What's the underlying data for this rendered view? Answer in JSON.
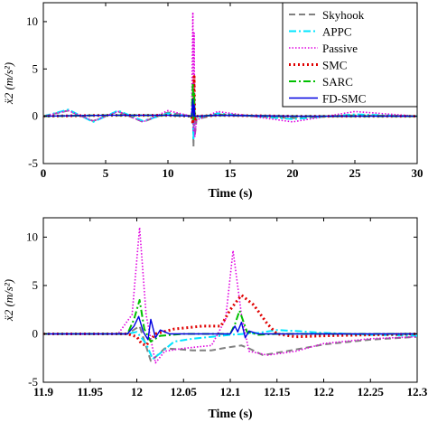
{
  "chart_data": [
    {
      "type": "line",
      "xlabel": "Time (s)",
      "ylabel": "ẍ2 (m/s²)",
      "xlim": [
        0,
        30
      ],
      "ylim": [
        -5,
        12
      ],
      "xticks": [
        "0",
        "5",
        "10",
        "15",
        "20",
        "25",
        "30"
      ],
      "yticks": [
        "-5",
        "0",
        "5",
        "10"
      ],
      "grid": false,
      "legend_position": "top-right",
      "series": [
        {
          "name": "Skyhook",
          "color": "#808080",
          "dash": "dashed",
          "x": [
            0,
            2,
            4,
            6,
            8,
            10,
            11.9,
            12.0,
            12.05,
            12.1,
            12.15,
            12.3,
            14,
            20,
            25,
            30
          ],
          "values": [
            0,
            0.6,
            -0.5,
            0.5,
            -0.6,
            0.4,
            0,
            0.6,
            -3.2,
            2.0,
            -2.1,
            -0.3,
            0.2,
            -0.2,
            0.1,
            0
          ]
        },
        {
          "name": "APPC",
          "color": "#00e5ff",
          "dash": "dashdot",
          "x": [
            0,
            2,
            4,
            6,
            8,
            10,
            11.9,
            12.0,
            12.05,
            12.1,
            12.15,
            12.3,
            14,
            20,
            25,
            30
          ],
          "values": [
            0,
            0.7,
            -0.6,
            0.6,
            -0.5,
            0.3,
            0,
            1.0,
            -2.5,
            1.5,
            -0.3,
            -0.2,
            0.3,
            -0.3,
            0.2,
            0
          ]
        },
        {
          "name": "Passive",
          "color": "#e000e0",
          "dash": "dotted",
          "x": [
            0,
            2,
            4,
            6,
            8,
            10,
            11.9,
            12.0,
            12.05,
            12.1,
            12.15,
            12.3,
            14,
            20,
            25,
            30
          ],
          "values": [
            0,
            0.6,
            -0.5,
            0.5,
            -0.6,
            0.6,
            0,
            11.0,
            -1.5,
            8.8,
            -2.2,
            -0.4,
            0.5,
            -0.6,
            0.5,
            0
          ]
        },
        {
          "name": "SMC",
          "color": "#e00000",
          "dash": "dotted-thick",
          "x": [
            0,
            5,
            10,
            11.9,
            12.0,
            12.05,
            12.1,
            12.15,
            12.3,
            14,
            20,
            30
          ],
          "values": [
            0,
            0.1,
            0.1,
            0,
            -0.8,
            0.8,
            4.2,
            -0.5,
            0,
            0.1,
            0,
            0
          ]
        },
        {
          "name": "SARC",
          "color": "#00c000",
          "dash": "dashdot",
          "x": [
            0,
            5,
            10,
            11.9,
            12.0,
            12.05,
            12.1,
            12.15,
            12.3,
            14,
            20,
            30
          ],
          "values": [
            0,
            0.1,
            0.1,
            0,
            3.5,
            -0.3,
            2.4,
            0,
            0,
            0.1,
            0,
            0
          ]
        },
        {
          "name": "FD-SMC",
          "color": "#0000e0",
          "dash": "solid",
          "x": [
            0,
            5,
            10,
            11.9,
            12.0,
            12.05,
            12.1,
            12.15,
            12.3,
            14,
            20,
            30
          ],
          "values": [
            0,
            0.1,
            0.1,
            0,
            1.8,
            0,
            1.2,
            0,
            0,
            0.1,
            0,
            0
          ]
        }
      ]
    },
    {
      "type": "line",
      "xlabel": "Time (s)",
      "ylabel": "ẍ2 (m/s²)",
      "xlim": [
        11.9,
        12.3
      ],
      "ylim": [
        -5,
        12
      ],
      "xticks": [
        "11.9",
        "11.95",
        "12",
        "12.05",
        "12.1",
        "12.15",
        "12.2",
        "12.25",
        "12.3"
      ],
      "yticks": [
        "-5",
        "0",
        "5",
        "10"
      ],
      "grid": false,
      "series": [
        {
          "name": "Skyhook",
          "color": "#808080",
          "dash": "dashed",
          "x": [
            11.9,
            11.99,
            12.003,
            12.015,
            12.02,
            12.03,
            12.045,
            12.06,
            12.08,
            12.097,
            12.112,
            12.12,
            12.135,
            12.16,
            12.2,
            12.25,
            12.3
          ],
          "values": [
            0,
            0,
            0.8,
            -2.8,
            -2.4,
            -1.5,
            -1.6,
            -1.7,
            -1.7,
            -1.4,
            -1.2,
            -1.5,
            -2.2,
            -1.8,
            -1.1,
            -0.6,
            -0.3
          ]
        },
        {
          "name": "APPC",
          "color": "#00e5ff",
          "dash": "dashdot",
          "x": [
            11.9,
            11.99,
            12.0,
            12.01,
            12.017,
            12.025,
            12.04,
            12.06,
            12.08,
            12.1,
            12.13,
            12.15,
            12.17,
            12.2,
            12.25,
            12.3
          ],
          "values": [
            0,
            0,
            0.2,
            -1.0,
            -2.6,
            -2.0,
            -0.8,
            -0.5,
            -0.3,
            -0.1,
            0.1,
            0.4,
            0.3,
            0.1,
            -0.1,
            -0.2
          ]
        },
        {
          "name": "Passive",
          "color": "#e000e0",
          "dash": "dotted",
          "x": [
            11.9,
            11.98,
            11.995,
            12.003,
            12.01,
            12.02,
            12.03,
            12.05,
            12.08,
            12.095,
            12.103,
            12.112,
            12.12,
            12.14,
            12.17,
            12.2,
            12.25,
            12.3
          ],
          "values": [
            0,
            0,
            2.0,
            11.0,
            2.0,
            -3.0,
            -1.8,
            -1.5,
            -1.2,
            1.5,
            8.6,
            2.0,
            -1.8,
            -2.2,
            -1.8,
            -1.0,
            -0.5,
            -0.3
          ]
        },
        {
          "name": "SMC",
          "color": "#e00000",
          "dash": "dotted-thick",
          "x": [
            11.9,
            11.99,
            12.0,
            12.005,
            12.01,
            12.02,
            12.04,
            12.07,
            12.09,
            12.1,
            12.112,
            12.125,
            12.14,
            12.15,
            12.17,
            12.2,
            12.3
          ],
          "values": [
            0,
            0,
            -0.3,
            -1.0,
            -1.2,
            0,
            0.5,
            0.8,
            0.8,
            2.5,
            4.0,
            3.0,
            1.0,
            0,
            -0.3,
            -0.2,
            0
          ]
        },
        {
          "name": "SARC",
          "color": "#00c000",
          "dash": "dashdot",
          "x": [
            11.9,
            11.99,
            11.997,
            12.003,
            12.008,
            12.015,
            12.025,
            12.05,
            12.1,
            12.105,
            12.11,
            12.118,
            12.13,
            12.15,
            12.2,
            12.3
          ],
          "values": [
            0,
            0,
            1.5,
            3.5,
            0.5,
            -0.8,
            -0.2,
            0,
            0,
            1.0,
            2.4,
            0.2,
            -0.1,
            0,
            0,
            0
          ]
        },
        {
          "name": "FD-SMC",
          "color": "#0000e0",
          "dash": "solid",
          "x": [
            11.9,
            11.99,
            11.997,
            12.002,
            12.007,
            12.012,
            12.015,
            12.02,
            12.025,
            12.035,
            12.06,
            12.1,
            12.105,
            12.108,
            12.112,
            12.116,
            12.12,
            12.13,
            12.15,
            12.2,
            12.3
          ],
          "values": [
            0,
            0,
            0.8,
            1.8,
            0.2,
            -0.6,
            1.5,
            -0.4,
            0.4,
            0,
            0,
            0,
            0.8,
            0.2,
            1.2,
            -0.4,
            0.3,
            0,
            0,
            0,
            0
          ]
        }
      ]
    }
  ]
}
